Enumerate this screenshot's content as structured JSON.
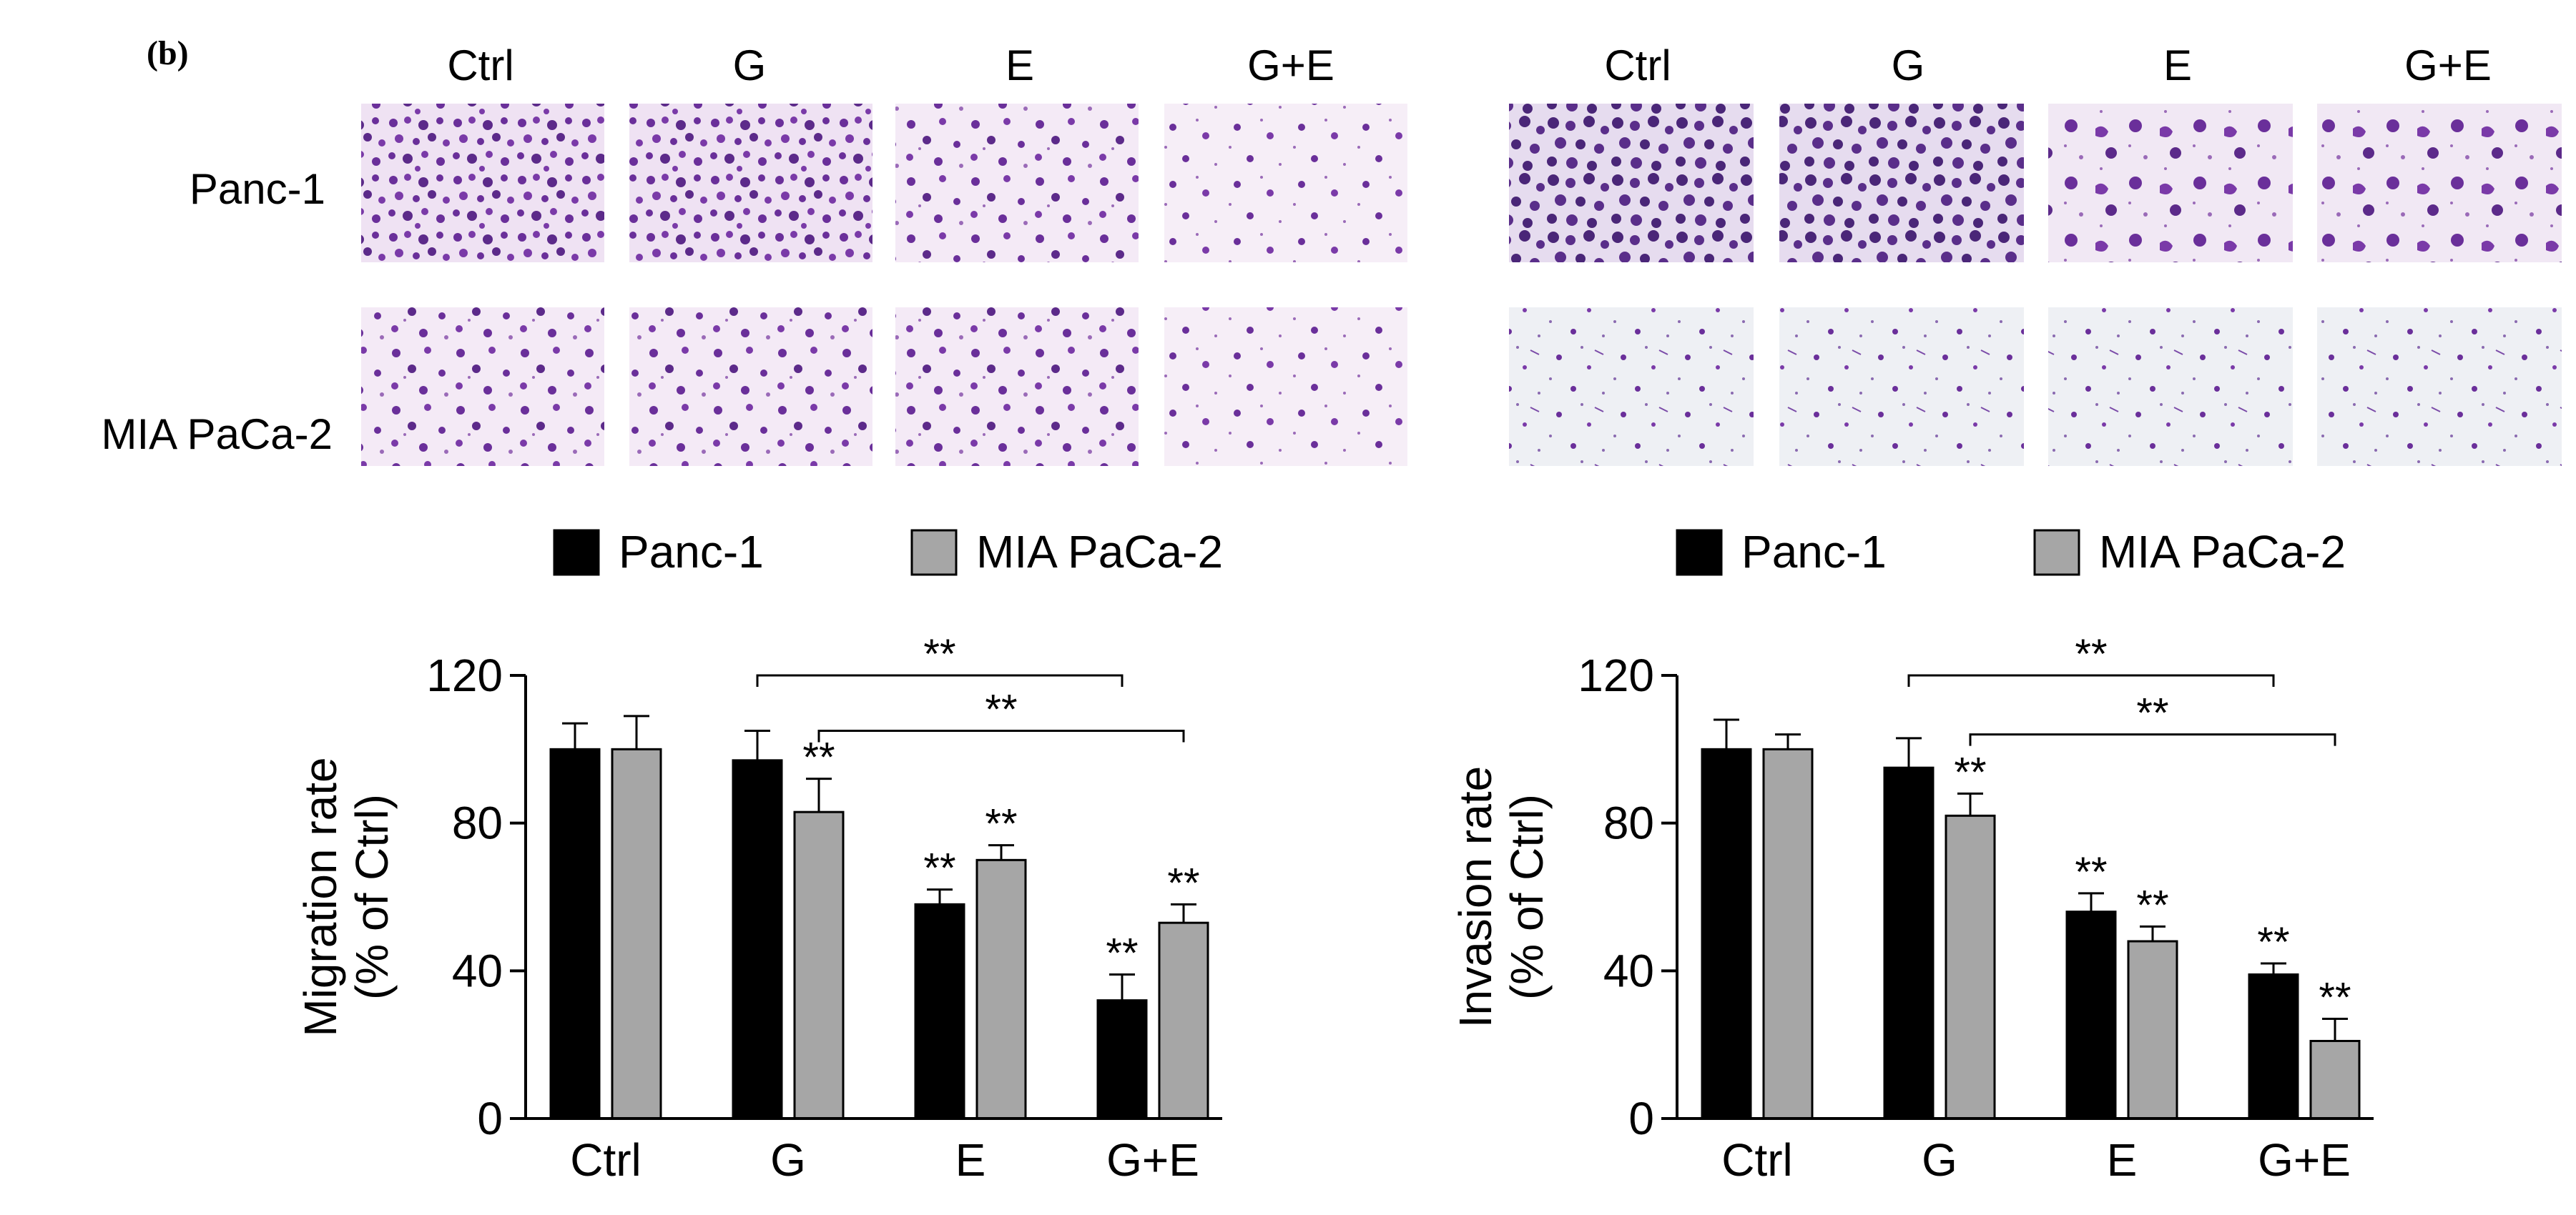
{
  "panel_label": "(b)",
  "micrographs": {
    "conditions": [
      "Ctrl",
      "G",
      "E",
      "G+E"
    ],
    "cell_lines": [
      "Panc-1",
      "MIA PaCa-2"
    ]
  },
  "significance_mark": "**",
  "colors": {
    "panc1": "#000000",
    "miapaca2": "#a6a6a6",
    "stain": "#6a2f9a"
  },
  "chart_data": [
    {
      "type": "bar",
      "categories": [
        "Ctrl",
        "G",
        "E",
        "G+E"
      ],
      "ylabel_line1": "Migration rate",
      "ylabel_line2": "(% of Ctrl)",
      "ylim": [
        0,
        120
      ],
      "yticks": [
        0,
        40,
        80,
        120
      ],
      "legend_position": "top",
      "series": [
        {
          "name": "Panc-1",
          "values": [
            100,
            97,
            58,
            32
          ],
          "errors": [
            7,
            8,
            4,
            7
          ],
          "stars": [
            "",
            "",
            "**",
            "**"
          ]
        },
        {
          "name": "MIA PaCa-2",
          "values": [
            100,
            83,
            70,
            53
          ],
          "errors": [
            9,
            9,
            4,
            5
          ],
          "stars": [
            "",
            "**",
            "**",
            "**"
          ]
        }
      ],
      "brackets": [
        {
          "from_category": 1,
          "from_series": 0,
          "to_category": 3,
          "to_series": 0,
          "y": 120,
          "label": "**"
        },
        {
          "from_category": 1,
          "from_series": 1,
          "to_category": 3,
          "to_series": 1,
          "y": 105,
          "label": "**"
        }
      ]
    },
    {
      "type": "bar",
      "categories": [
        "Ctrl",
        "G",
        "E",
        "G+E"
      ],
      "ylabel_line1": "Invasion rate",
      "ylabel_line2": "(% of Ctrl)",
      "ylim": [
        0,
        120
      ],
      "yticks": [
        0,
        40,
        80,
        120
      ],
      "legend_position": "top",
      "series": [
        {
          "name": "Panc-1",
          "values": [
            100,
            95,
            56,
            39
          ],
          "errors": [
            8,
            8,
            5,
            3
          ],
          "stars": [
            "",
            "",
            "**",
            "**"
          ]
        },
        {
          "name": "MIA PaCa-2",
          "values": [
            100,
            82,
            48,
            21
          ],
          "errors": [
            4,
            6,
            4,
            6
          ],
          "stars": [
            "",
            "**",
            "**",
            "**"
          ]
        }
      ],
      "brackets": [
        {
          "from_category": 1,
          "from_series": 0,
          "to_category": 3,
          "to_series": 0,
          "y": 120,
          "label": "**"
        },
        {
          "from_category": 1,
          "from_series": 1,
          "to_category": 3,
          "to_series": 1,
          "y": 104,
          "label": "**"
        }
      ]
    }
  ]
}
